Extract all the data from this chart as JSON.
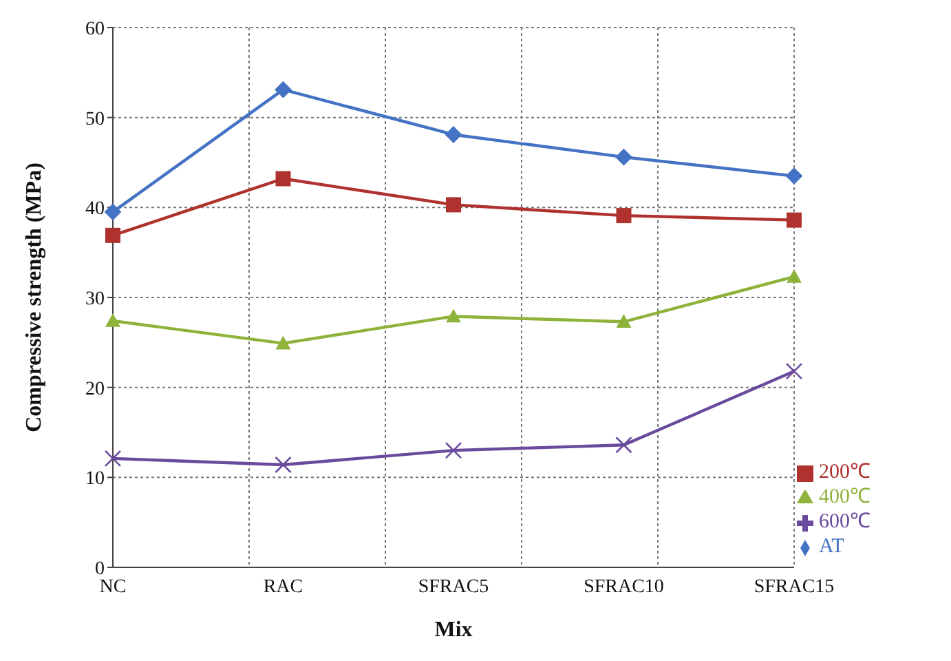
{
  "chart_data": {
    "type": "line",
    "xlabel": "Mix",
    "ylabel": "Compressive strength (MPa)",
    "categories": [
      "NC",
      "RAC",
      "SFRAC5",
      "SFRAC10",
      "SFRAC15"
    ],
    "ylim": [
      0,
      60
    ],
    "yticks": [
      0,
      10,
      20,
      30,
      40,
      50,
      60
    ],
    "grid": true,
    "legend": "bottom right",
    "line_style": "solid",
    "series": [
      {
        "name": "AT",
        "color": "#4472c4",
        "marker": "diamond",
        "values": [
          39.5,
          53.1,
          48.1,
          45.6,
          43.5
        ]
      },
      {
        "name": "200℃",
        "color": "#b0322e",
        "marker": "square",
        "values": [
          36.9,
          43.2,
          40.3,
          39.1,
          38.6
        ]
      },
      {
        "name": "400℃",
        "color": "#8db33a",
        "marker": "triangle",
        "values": [
          27.4,
          24.9,
          27.9,
          27.3,
          32.3
        ]
      },
      {
        "name": "600℃",
        "color": "#6a4a9c",
        "marker": "cross",
        "values": [
          12.1,
          11.4,
          13.0,
          13.6,
          21.8
        ]
      }
    ]
  }
}
